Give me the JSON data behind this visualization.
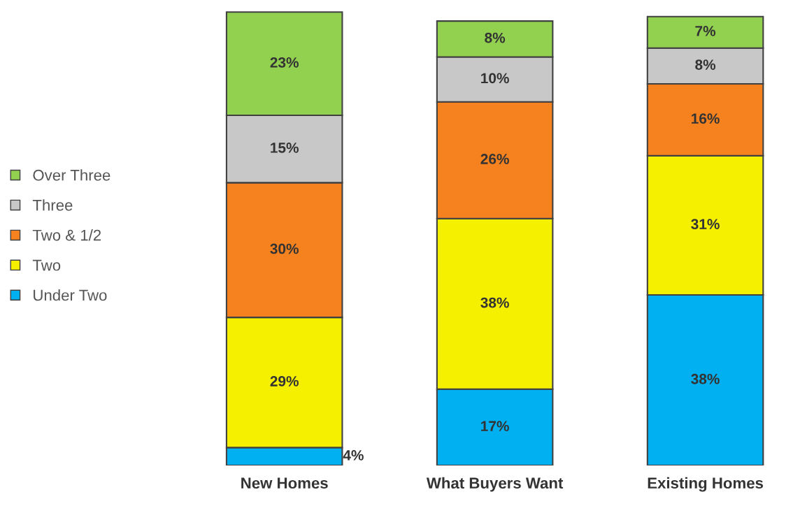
{
  "chart_data": {
    "type": "bar",
    "stacked": true,
    "legend": "left",
    "grid": false,
    "categories": [
      "New Homes",
      "What Buyers Want",
      "Existing Homes"
    ],
    "series": [
      {
        "name": "Under Two",
        "color": "#00b0f0",
        "values": [
          4,
          17,
          38
        ],
        "value_labels": [
          "4%",
          "17%",
          "38%"
        ]
      },
      {
        "name": "Two",
        "color": "#f5f000",
        "values": [
          29,
          38,
          31
        ],
        "value_labels": [
          "29%",
          "38%",
          "31%"
        ]
      },
      {
        "name": "Two & 1/2",
        "color": "#f5821f",
        "values": [
          30,
          26,
          16
        ],
        "value_labels": [
          "30%",
          "26%",
          "16%"
        ]
      },
      {
        "name": "Three",
        "color": "#c8c8c8",
        "values": [
          15,
          10,
          8
        ],
        "value_labels": [
          "15%",
          "10%",
          "8%"
        ]
      },
      {
        "name": "Over Three",
        "color": "#92d050",
        "values": [
          23,
          8,
          7
        ],
        "value_labels": [
          "23%",
          "8%",
          "7%"
        ]
      }
    ]
  }
}
